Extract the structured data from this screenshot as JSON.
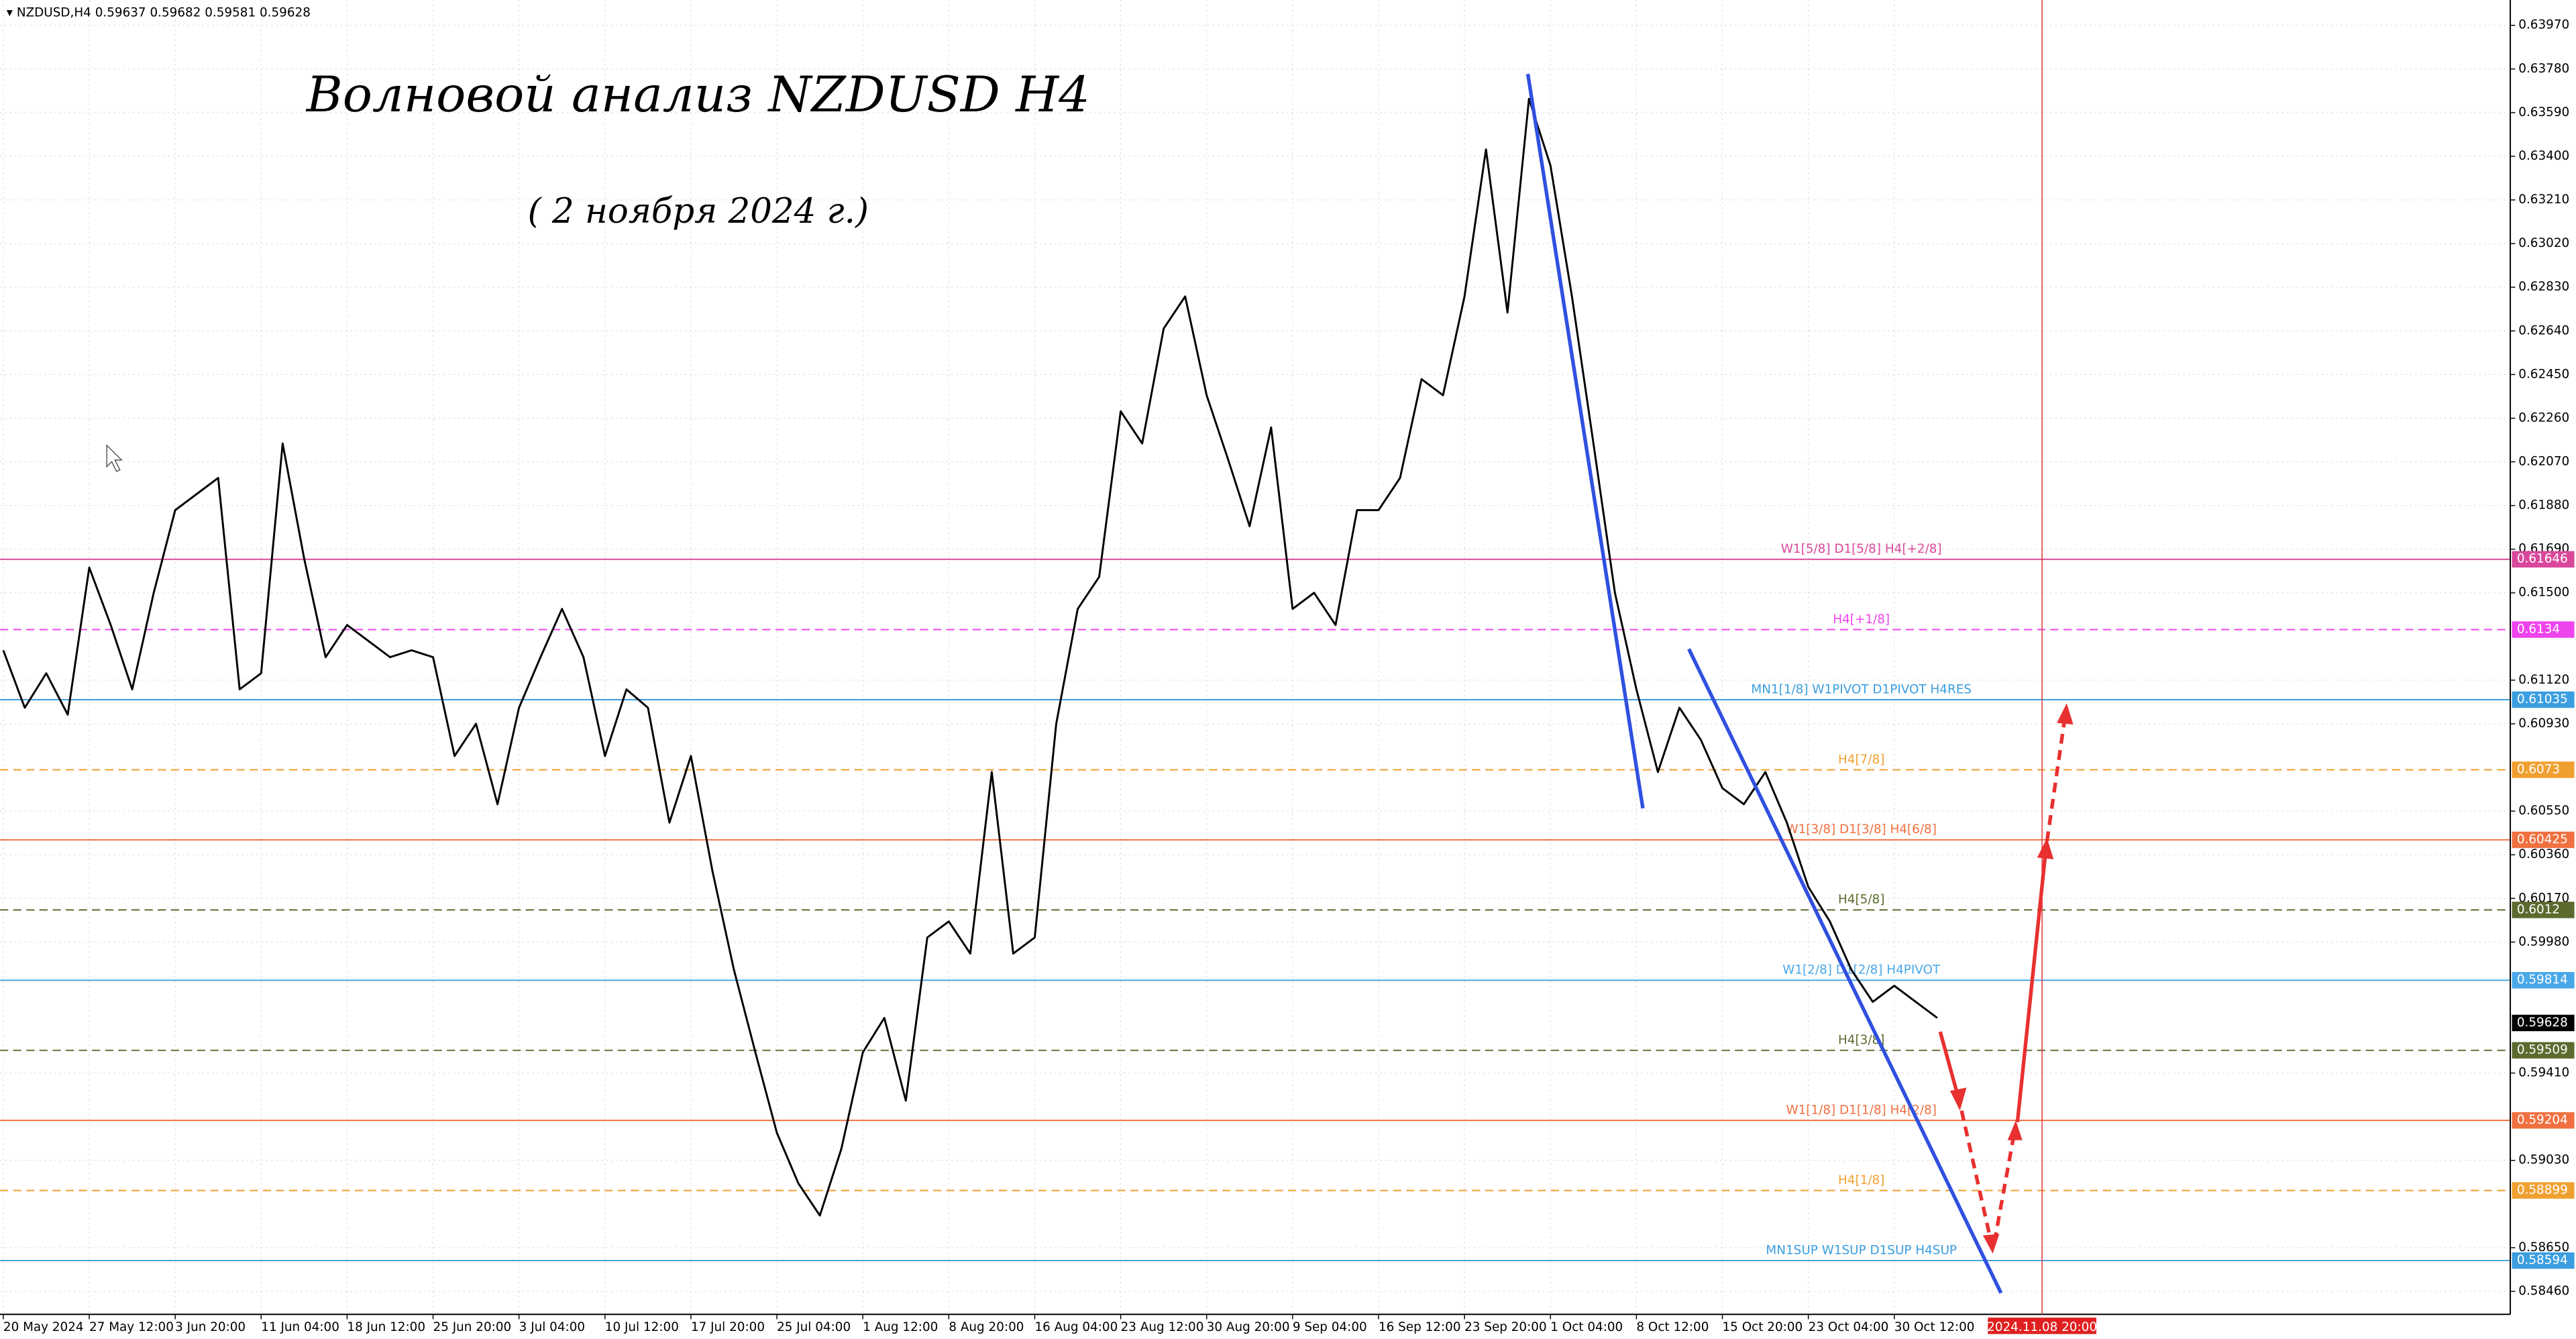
{
  "chart_data": {
    "type": "line",
    "symbol": "NZDUSD,H4",
    "ohlc": [
      0.59637,
      0.59682,
      0.59581,
      0.59628
    ],
    "title": "Волновой анализ NZDUSD H4",
    "subtitle": "( 2 ноября 2024 г.)",
    "categories": [
      "20 May 2024",
      null,
      null,
      null,
      "27 May 12:00",
      null,
      null,
      null,
      "3 Jun 20:00",
      null,
      null,
      null,
      "11 Jun 04:00",
      null,
      null,
      null,
      "18 Jun 12:00",
      null,
      null,
      null,
      "25 Jun 20:00",
      null,
      null,
      null,
      "3 Jul 04:00",
      null,
      null,
      null,
      "10 Jul 12:00",
      null,
      null,
      null,
      "17 Jul 20:00",
      null,
      null,
      null,
      "25 Jul 04:00",
      null,
      null,
      null,
      "1 Aug 12:00",
      null,
      null,
      null,
      "8 Aug 20:00",
      null,
      null,
      null,
      "16 Aug 04:00",
      null,
      null,
      null,
      "23 Aug 12:00",
      null,
      null,
      null,
      "30 Aug 20:00",
      null,
      null,
      null,
      "9 Sep 04:00",
      null,
      null,
      null,
      "16 Sep 12:00",
      null,
      null,
      null,
      "23 Sep 20:00",
      null,
      null,
      null,
      "1 Oct 04:00",
      null,
      null,
      null,
      "8 Oct 12:00",
      null,
      null,
      null,
      "15 Oct 20:00",
      null,
      null,
      null,
      "23 Oct 04:00",
      null,
      null,
      null,
      "30 Oct 12:00",
      null,
      null
    ],
    "series": [
      {
        "name": "NZDUSD",
        "color": "#000000",
        "values": [
          0.6125,
          0.61,
          0.6115,
          0.6097,
          0.6161,
          0.6136,
          0.6108,
          0.615,
          0.6186,
          0.6193,
          0.62,
          0.6108,
          0.6115,
          0.6215,
          0.6165,
          0.6122,
          0.6136,
          0.6129,
          0.6122,
          0.6125,
          0.6122,
          0.6079,
          0.6093,
          0.6058,
          0.61,
          0.6122,
          0.6143,
          0.6122,
          0.6079,
          0.6108,
          0.61,
          0.605,
          0.6079,
          0.6029,
          0.5986,
          0.595,
          0.5915,
          0.5893,
          0.5879,
          0.5908,
          0.595,
          0.5965,
          0.5929,
          0.6,
          0.6007,
          0.5993,
          0.6072,
          0.5993,
          0.6,
          0.6093,
          0.6143,
          0.6157,
          0.6229,
          0.6215,
          0.6265,
          0.6279,
          0.6236,
          0.6208,
          0.6179,
          0.6222,
          0.6143,
          0.615,
          0.6136,
          0.6186,
          0.6186,
          0.62,
          0.6243,
          0.6236,
          0.6279,
          0.6343,
          0.6272,
          0.6365,
          0.6336,
          0.6279,
          0.6215,
          0.615,
          0.6108,
          0.6072,
          0.61,
          0.6086,
          0.6065,
          0.6058,
          0.6072,
          0.605,
          0.6022,
          0.6007,
          0.5986,
          0.5972,
          0.5979,
          0.5972,
          0.5965
        ]
      }
    ],
    "ylim": [
      0.5836,
      0.6408
    ],
    "yticks": [
      {
        "value": 0.6397,
        "label": "0.63970"
      },
      {
        "value": 0.6378,
        "label": "0.63780"
      },
      {
        "value": 0.6359,
        "label": "0.63590"
      },
      {
        "value": 0.634,
        "label": "0.63400"
      },
      {
        "value": 0.6321,
        "label": "0.63210"
      },
      {
        "value": 0.6302,
        "label": "0.63020"
      },
      {
        "value": 0.6283,
        "label": "0.62830"
      },
      {
        "value": 0.6264,
        "label": "0.62640"
      },
      {
        "value": 0.6245,
        "label": "0.62450"
      },
      {
        "value": 0.6226,
        "label": "0.62260"
      },
      {
        "value": 0.6207,
        "label": "0.62070"
      },
      {
        "value": 0.6188,
        "label": "0.61880"
      },
      {
        "value": 0.6169,
        "label": "0.61690"
      },
      {
        "value": 0.615,
        "label": "0.61500"
      },
      {
        "value": 0.6112,
        "label": "0.61120"
      },
      {
        "value": 0.6093,
        "label": "0.60930"
      },
      {
        "value": 0.6055,
        "label": "0.60550"
      },
      {
        "value": 0.6036,
        "label": "0.60360"
      },
      {
        "value": 0.6017,
        "label": "0.60170"
      },
      {
        "value": 0.5998,
        "label": "0.59980"
      },
      {
        "value": 0.5941,
        "label": "0.59410"
      },
      {
        "value": 0.5903,
        "label": "0.59030"
      },
      {
        "value": 0.5865,
        "label": "0.58650"
      },
      {
        "value": 0.5846,
        "label": "0.58460"
      }
    ],
    "grid": true,
    "last_price": 0.59628,
    "levels": [
      {
        "value": 0.61646,
        "color": "#d9489a",
        "dashed": false,
        "label": "W1[5/8] D1[5/8] H4[+2/8]"
      },
      {
        "value": 0.6134,
        "color": "#ee44ee",
        "dashed": true,
        "label": "H4[+1/8]"
      },
      {
        "value": 0.61035,
        "color": "#3b9ee0",
        "dashed": false,
        "label": "MN1[1/8] W1PIVOT D1PIVOT H4RES"
      },
      {
        "value": 0.6073,
        "color": "#f0a030",
        "dashed": true,
        "label": "H4[7/8]"
      },
      {
        "value": 0.60425,
        "color": "#f07040",
        "dashed": false,
        "label": "W1[3/8] D1[3/8] H4[6/8]"
      },
      {
        "value": 0.6012,
        "color": "#5b6b2f",
        "dashed": true,
        "label": "H4[5/8]"
      },
      {
        "value": 0.59814,
        "color": "#4aa8e8",
        "dashed": false,
        "label": "W1[2/8] D1[2/8] H4PIVOT"
      },
      {
        "value": 0.59509,
        "color": "#5b6b2f",
        "dashed": true,
        "label": "H4[3/8]"
      },
      {
        "value": 0.59204,
        "color": "#f07040",
        "dashed": false,
        "label": "W1[1/8] D1[1/8] H4[2/8]"
      },
      {
        "value": 0.58899,
        "color": "#f0a030",
        "dashed": true,
        "label": "H4[1/8]"
      },
      {
        "value": 0.58594,
        "color": "#3b9ee0",
        "dashed": false,
        "label": "MN1SUP W1SUP D1SUP H4SUP"
      }
    ],
    "cursor_label": "2024.11.08 20:00"
  }
}
